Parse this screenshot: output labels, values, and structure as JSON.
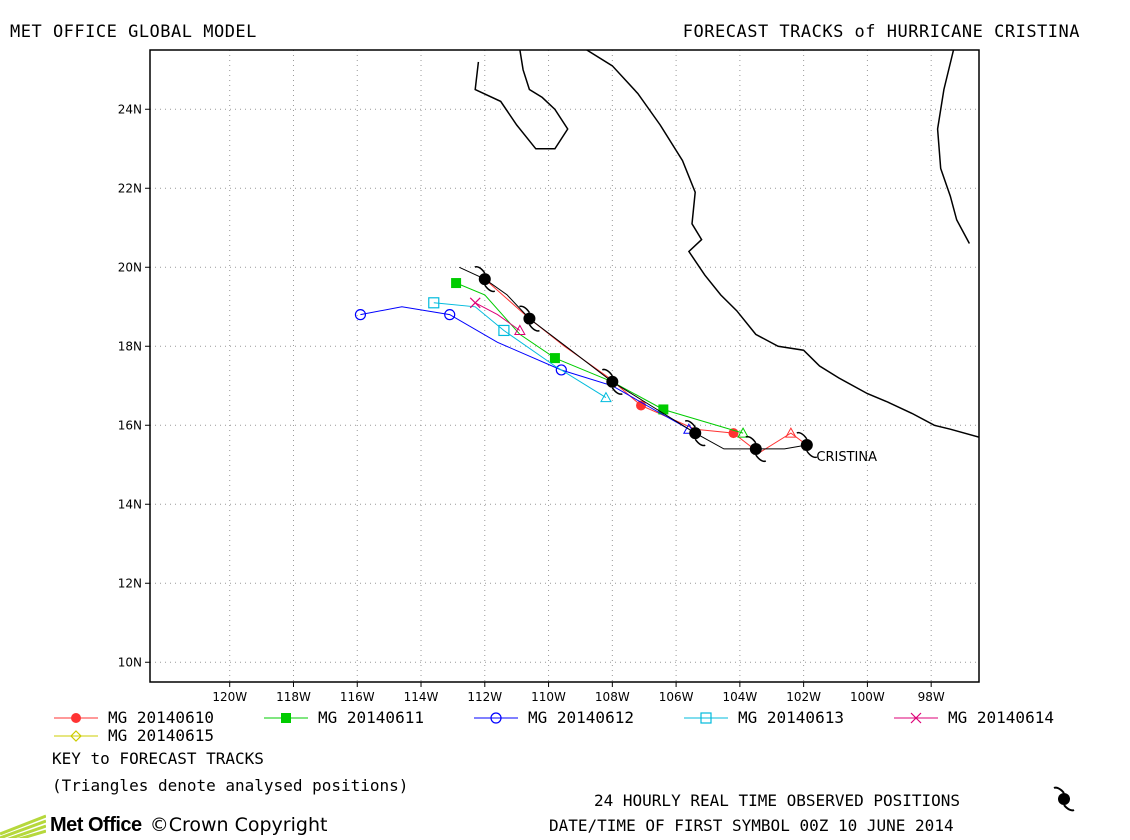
{
  "header": {
    "left_title": "MET OFFICE GLOBAL MODEL",
    "right_title": "FORECAST TRACKS of HURRICANE CRISTINA"
  },
  "map": {
    "lon_range": [
      -122.5,
      -96.5
    ],
    "lat_range": [
      9.5,
      25.5
    ],
    "lon_ticks": [
      {
        "value": -120,
        "label": "120W"
      },
      {
        "value": -118,
        "label": "118W"
      },
      {
        "value": -116,
        "label": "116W"
      },
      {
        "value": -114,
        "label": "114W"
      },
      {
        "value": -112,
        "label": "112W"
      },
      {
        "value": -110,
        "label": "110W"
      },
      {
        "value": -108,
        "label": "108W"
      },
      {
        "value": -106,
        "label": "106W"
      },
      {
        "value": -104,
        "label": "104W"
      },
      {
        "value": -102,
        "label": "102W"
      },
      {
        "value": -100,
        "label": "100W"
      },
      {
        "value": -98,
        "label": "98W"
      }
    ],
    "lat_ticks": [
      {
        "value": 10,
        "label": "10N"
      },
      {
        "value": 12,
        "label": "12N"
      },
      {
        "value": 14,
        "label": "14N"
      },
      {
        "value": 16,
        "label": "16N"
      },
      {
        "value": 18,
        "label": "18N"
      },
      {
        "value": 20,
        "label": "20N"
      },
      {
        "value": 22,
        "label": "22N"
      },
      {
        "value": 24,
        "label": "24N"
      }
    ],
    "grid": "dotted",
    "storm_label": "CRISTINA",
    "storm_label_pos": [
      -101.6,
      15.1
    ]
  },
  "coastlines": [
    [
      [
        -112.2,
        25.2
      ],
      [
        -112.3,
        24.5
      ],
      [
        -111.5,
        24.2
      ],
      [
        -111.0,
        23.6
      ],
      [
        -110.4,
        23.0
      ],
      [
        -109.8,
        23.0
      ],
      [
        -109.4,
        23.5
      ],
      [
        -109.8,
        24.0
      ],
      [
        -110.2,
        24.3
      ],
      [
        -110.6,
        24.5
      ],
      [
        -110.8,
        25.0
      ],
      [
        -110.9,
        25.5
      ]
    ],
    [
      [
        -108.8,
        25.5
      ],
      [
        -108.0,
        25.1
      ],
      [
        -107.2,
        24.4
      ],
      [
        -106.5,
        23.6
      ],
      [
        -105.8,
        22.7
      ],
      [
        -105.4,
        21.9
      ],
      [
        -105.5,
        21.1
      ],
      [
        -105.2,
        20.7
      ],
      [
        -105.6,
        20.4
      ],
      [
        -105.1,
        19.8
      ],
      [
        -104.6,
        19.3
      ],
      [
        -104.1,
        18.9
      ],
      [
        -103.5,
        18.3
      ],
      [
        -102.8,
        18.0
      ],
      [
        -102.0,
        17.9
      ],
      [
        -101.5,
        17.5
      ],
      [
        -100.9,
        17.2
      ],
      [
        -100.0,
        16.8
      ],
      [
        -99.4,
        16.6
      ],
      [
        -98.6,
        16.3
      ],
      [
        -97.9,
        16.0
      ],
      [
        -97.4,
        15.9
      ],
      [
        -96.5,
        15.7
      ]
    ],
    [
      [
        -97.3,
        25.5
      ],
      [
        -97.6,
        24.5
      ],
      [
        -97.8,
        23.5
      ],
      [
        -97.7,
        22.5
      ],
      [
        -97.4,
        21.8
      ],
      [
        -97.2,
        21.2
      ],
      [
        -96.8,
        20.6
      ]
    ]
  ],
  "chart_data": {
    "type": "scatter",
    "observed": {
      "name": "24 HOURLY REAL TIME OBSERVED POSITIONS",
      "track": [
        [
          -101.9,
          15.5
        ],
        [
          -102.6,
          15.4
        ],
        [
          -103.5,
          15.4
        ],
        [
          -104.5,
          15.4
        ],
        [
          -105.4,
          15.8
        ],
        [
          -106.8,
          16.5
        ],
        [
          -108.0,
          17.1
        ],
        [
          -109.3,
          17.9
        ],
        [
          -110.6,
          18.7
        ],
        [
          -111.3,
          19.3
        ],
        [
          -112.0,
          19.7
        ],
        [
          -112.8,
          20.0
        ]
      ],
      "symbols": [
        [
          -101.9,
          15.5
        ],
        [
          -103.5,
          15.4
        ],
        [
          -105.4,
          15.8
        ],
        [
          -108.0,
          17.1
        ],
        [
          -110.6,
          18.7
        ],
        [
          -112.0,
          19.7
        ]
      ]
    },
    "series": [
      {
        "name": "MG 20140610",
        "color": "#ff3333",
        "marker": "filled-circle",
        "track": [
          [
            -101.9,
            15.5
          ],
          [
            -102.4,
            15.8
          ],
          [
            -103.4,
            15.3
          ],
          [
            -104.2,
            15.8
          ],
          [
            -105.4,
            15.9
          ],
          [
            -107.1,
            16.5
          ],
          [
            -108.1,
            17.2
          ],
          [
            -109.5,
            18.0
          ],
          [
            -110.6,
            18.7
          ],
          [
            -111.3,
            19.2
          ],
          [
            -112.0,
            19.7
          ]
        ],
        "markers": [
          [
            -104.2,
            15.8
          ],
          [
            -107.1,
            16.5
          ],
          [
            -110.6,
            18.7
          ]
        ],
        "analysed": [
          [
            -102.4,
            15.8
          ]
        ]
      },
      {
        "name": "MG 20140611",
        "color": "#00cc00",
        "marker": "filled-square",
        "track": [
          [
            -103.9,
            15.8
          ],
          [
            -106.4,
            16.4
          ],
          [
            -108.0,
            17.1
          ],
          [
            -109.8,
            17.7
          ],
          [
            -110.9,
            18.3
          ],
          [
            -112.0,
            19.3
          ],
          [
            -112.9,
            19.6
          ]
        ],
        "markers": [
          [
            -106.4,
            16.4
          ],
          [
            -109.8,
            17.7
          ],
          [
            -112.9,
            19.6
          ]
        ],
        "analysed": [
          [
            -103.9,
            15.8
          ]
        ]
      },
      {
        "name": "MG 20140612",
        "color": "#0000ff",
        "marker": "open-circle",
        "track": [
          [
            -105.6,
            15.9
          ],
          [
            -106.7,
            16.4
          ],
          [
            -108.0,
            17.0
          ],
          [
            -109.6,
            17.4
          ],
          [
            -111.6,
            18.1
          ],
          [
            -113.1,
            18.8
          ],
          [
            -114.6,
            19.0
          ],
          [
            -115.9,
            18.8
          ]
        ],
        "markers": [
          [
            -109.6,
            17.4
          ],
          [
            -113.1,
            18.8
          ],
          [
            -115.9,
            18.8
          ]
        ],
        "analysed": [
          [
            -105.6,
            15.9
          ]
        ]
      },
      {
        "name": "MG 20140613",
        "color": "#00bbdd",
        "marker": "open-square",
        "track": [
          [
            -108.2,
            16.7
          ],
          [
            -109.8,
            17.5
          ],
          [
            -111.4,
            18.4
          ],
          [
            -112.3,
            19.0
          ],
          [
            -113.6,
            19.1
          ]
        ],
        "markers": [
          [
            -111.4,
            18.4
          ],
          [
            -113.6,
            19.1
          ]
        ],
        "analysed": [
          [
            -108.2,
            16.7
          ]
        ]
      },
      {
        "name": "MG 20140614",
        "color": "#dd0077",
        "marker": "cross",
        "track": [
          [
            -110.9,
            18.4
          ],
          [
            -111.6,
            18.8
          ],
          [
            -112.3,
            19.1
          ]
        ],
        "markers": [
          [
            -112.3,
            19.1
          ]
        ],
        "analysed": [
          [
            -110.9,
            18.4
          ]
        ]
      },
      {
        "name": "MG 20140615",
        "color": "#cccc00",
        "marker": "open-diamond",
        "track": [],
        "markers": [],
        "analysed": []
      }
    ]
  },
  "legend": {
    "items": [
      {
        "label": "MG 20140610",
        "color": "#ff3333",
        "marker": "filled-circle"
      },
      {
        "label": "MG 20140611",
        "color": "#00cc00",
        "marker": "filled-square"
      },
      {
        "label": "MG 20140612",
        "color": "#0000ff",
        "marker": "open-circle"
      },
      {
        "label": "MG 20140613",
        "color": "#00bbdd",
        "marker": "open-square"
      },
      {
        "label": "MG 20140614",
        "color": "#dd0077",
        "marker": "cross"
      },
      {
        "label": "MG 20140615",
        "color": "#cccc00",
        "marker": "open-diamond"
      }
    ],
    "key_title": "KEY to FORECAST TRACKS",
    "key_note": "(Triangles denote analysed positions)"
  },
  "footer": {
    "observed_label": "24 HOURLY REAL TIME OBSERVED POSITIONS",
    "datetime_label": "DATE/TIME OF FIRST SYMBOL 00Z 10 JUNE 2014",
    "logo_text": "Met Office",
    "copyright": "©Crown Copyright"
  }
}
